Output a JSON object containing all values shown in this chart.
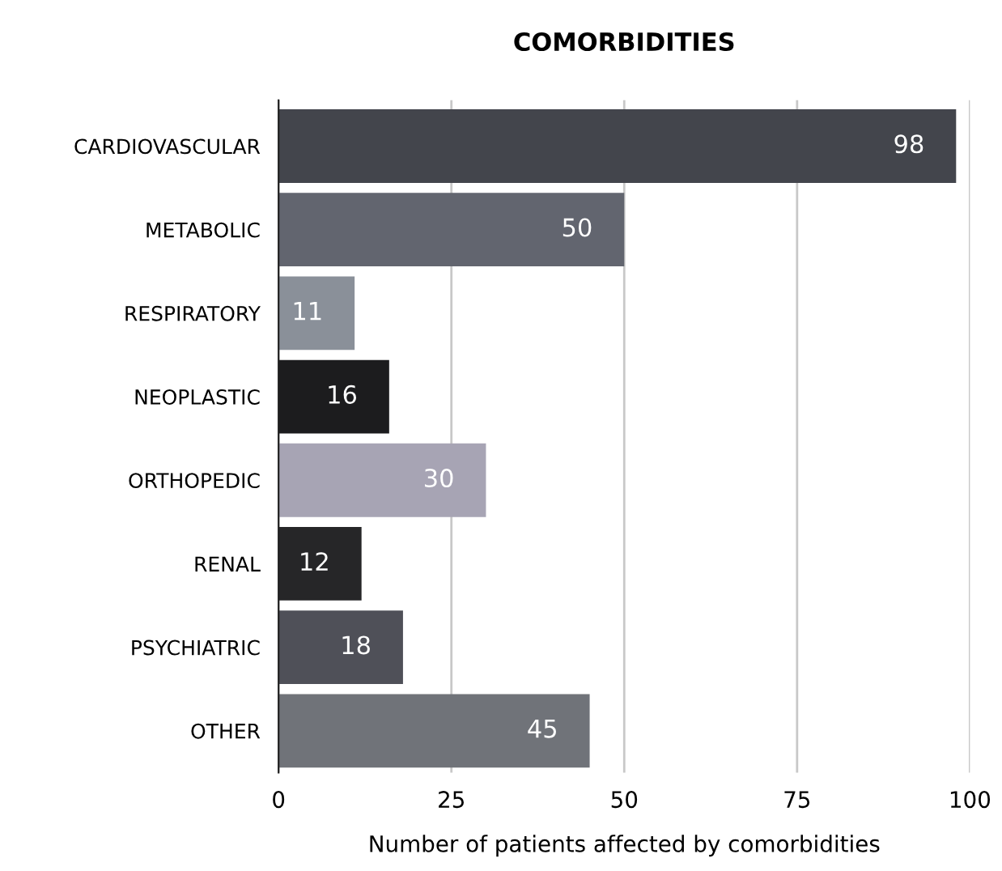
{
  "chart_data": {
    "type": "bar",
    "orientation": "horizontal",
    "title": "COMORBIDITIES",
    "xlabel": "Number of patients affected by comorbidities",
    "categories": [
      "CARDIOVASCULAR",
      "METABOLIC",
      "RESPIRATORY",
      "NEOPLASTIC",
      "ORTHOPEDIC",
      "RENAL",
      "PSYCHIATRIC",
      "OTHER"
    ],
    "values": [
      98,
      50,
      11,
      16,
      30,
      12,
      18,
      45
    ],
    "colors": [
      "#43454c",
      "#62656f",
      "#8a9099",
      "#1c1c1e",
      "#a7a4b4",
      "#262628",
      "#4f5058",
      "#707379"
    ],
    "xlim": [
      0,
      100
    ],
    "xticks": [
      0,
      25,
      50,
      75,
      100
    ],
    "grid": "x",
    "data_labels": true
  }
}
